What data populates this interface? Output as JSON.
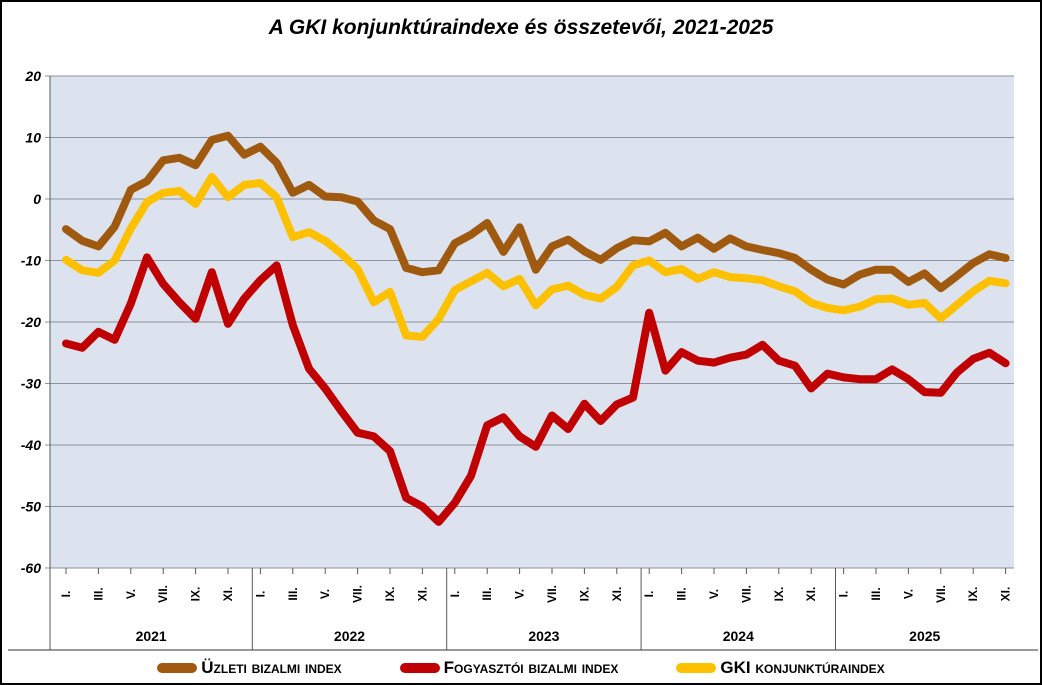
{
  "chart_data": {
    "type": "line",
    "title": "A GKI konjunktúraindexe és összetevői, 2021-2025",
    "plot_bg": "#DCE3EF",
    "grid": true,
    "gridline_color": "#8C939E",
    "axis_color": "#595959",
    "legend_position": "bottom",
    "y_axis": {
      "min": -60,
      "max": 20,
      "step": 10,
      "tick_labels": [
        "20",
        "10",
        "0",
        "-10",
        "-20",
        "-30",
        "-40",
        "-50",
        "-60"
      ]
    },
    "x_axis": {
      "years": [
        "2021",
        "2022",
        "2023",
        "2024",
        "2025"
      ],
      "points_per_year": [
        12,
        12,
        12,
        12,
        11
      ],
      "month_tick_labels": [
        "I.",
        "III.",
        "V.",
        "VII.",
        "IX.",
        "XI."
      ]
    },
    "series": [
      {
        "name": "Üzleti bizalmi index",
        "color": "#A05A10",
        "values": [
          -4.9,
          -6.8,
          -7.7,
          -4.5,
          1.5,
          2.9,
          6.3,
          6.7,
          5.5,
          9.6,
          10.3,
          7.2,
          8.5,
          5.9,
          1.0,
          2.3,
          0.4,
          0.3,
          -0.4,
          -3.5,
          -4.9,
          -11.2,
          -11.9,
          -11.6,
          -7.2,
          -5.8,
          -3.9,
          -8.6,
          -4.6,
          -11.5,
          -7.7,
          -6.6,
          -8.5,
          -9.9,
          -8.0,
          -6.7,
          -6.9,
          -5.5,
          -7.7,
          -6.3,
          -8.1,
          -6.4,
          -7.7,
          -8.3,
          -8.8,
          -9.6,
          -11.5,
          -13.1,
          -13.9,
          -12.3,
          -11.5,
          -11.5,
          -13.5,
          -12.1,
          -14.5,
          -12.5,
          -10.4,
          -9.0,
          -9.6
        ]
      },
      {
        "name": "Fogyasztói bizalmi index",
        "color": "#C00000",
        "values": [
          -23.5,
          -24.2,
          -21.6,
          -22.9,
          -17.0,
          -9.5,
          -13.8,
          -16.8,
          -19.5,
          -11.9,
          -20.3,
          -16.2,
          -13.2,
          -10.8,
          -20.5,
          -27.6,
          -30.8,
          -34.5,
          -38.0,
          -38.6,
          -41.0,
          -48.6,
          -50.0,
          -52.5,
          -49.4,
          -45.0,
          -36.8,
          -35.5,
          -38.6,
          -40.3,
          -35.2,
          -37.4,
          -33.3,
          -36.1,
          -33.4,
          -32.3,
          -18.5,
          -27.9,
          -24.9,
          -26.3,
          -26.6,
          -25.8,
          -25.3,
          -23.7,
          -26.3,
          -27.1,
          -30.8,
          -28.4,
          -29.0,
          -29.3,
          -29.3,
          -27.7,
          -29.3,
          -31.4,
          -31.5,
          -28.2,
          -26.0,
          -25.0,
          -26.7
        ]
      },
      {
        "name": "GKI konjunktúraindex",
        "color": "#FFC000",
        "values": [
          -9.9,
          -11.6,
          -12.0,
          -10.0,
          -4.8,
          -0.5,
          1.0,
          1.3,
          -0.8,
          3.6,
          0.3,
          2.3,
          2.6,
          0.3,
          -6.2,
          -5.4,
          -6.8,
          -8.9,
          -11.4,
          -16.8,
          -15.1,
          -22.2,
          -22.4,
          -19.5,
          -14.8,
          -13.4,
          -12.0,
          -14.2,
          -13.0,
          -17.3,
          -14.7,
          -14.1,
          -15.6,
          -16.2,
          -14.3,
          -10.8,
          -10.0,
          -11.9,
          -11.4,
          -13.0,
          -11.9,
          -12.7,
          -12.9,
          -13.2,
          -14.2,
          -15.0,
          -16.9,
          -17.7,
          -18.1,
          -17.5,
          -16.3,
          -16.2,
          -17.2,
          -16.9,
          -19.4,
          -17.2,
          -15.0,
          -13.3,
          -13.7
        ]
      }
    ]
  }
}
